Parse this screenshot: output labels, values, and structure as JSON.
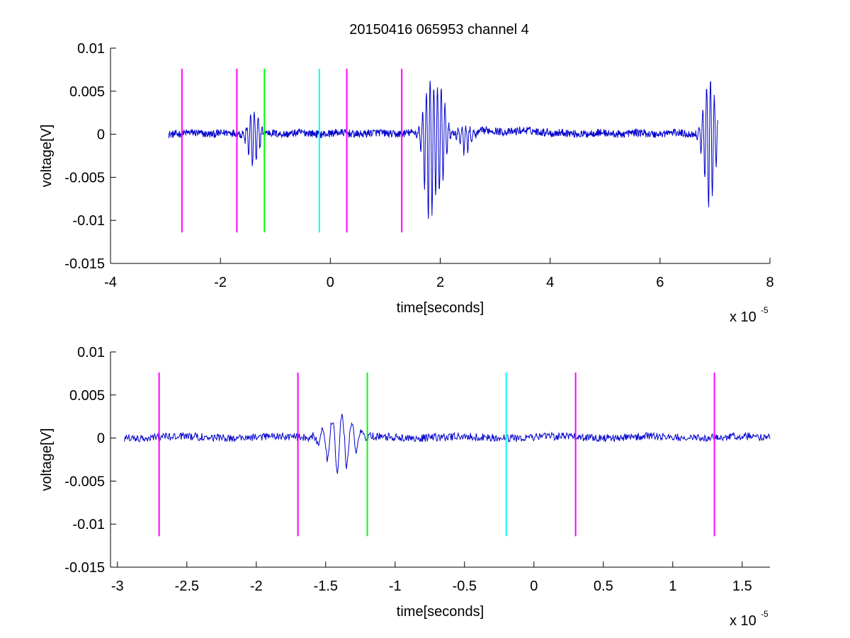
{
  "figure": {
    "title": "20150416 065953 channel 4"
  },
  "chart_data": [
    {
      "type": "line",
      "title": "20150416 065953 channel 4",
      "xlabel": "time[seconds]",
      "ylabel": "voltage[V]",
      "x_scale_label": "x 10",
      "x_scale_exponent": "-5",
      "xlim": [
        -4,
        8
      ],
      "ylim": [
        -0.015,
        0.01
      ],
      "x_ticks": [
        -4,
        -2,
        0,
        2,
        4,
        6,
        8
      ],
      "x_tick_labels": [
        "-4",
        "-2",
        "0",
        "2",
        "4",
        "6",
        "8"
      ],
      "y_ticks": [
        -0.015,
        -0.01,
        -0.005,
        0,
        0.005,
        0.01
      ],
      "y_tick_labels": [
        "-0.015",
        "-0.01",
        "-0.005",
        "0",
        "0.005",
        "0.01"
      ],
      "grid": false,
      "series_color": "#0000cc",
      "signal_range": [
        -2.95,
        7.05
      ],
      "bursts": [
        {
          "center": -1.4,
          "amp_pos": 0.0026,
          "amp_neg": -0.0042
        },
        {
          "center": 1.8,
          "amp_pos": 0.006,
          "amp_neg": -0.0103
        },
        {
          "center": 2.0,
          "amp_pos": 0.0053,
          "amp_neg": -0.0063
        },
        {
          "center": 2.45,
          "amp_pos": 0.001,
          "amp_neg": -0.0025
        },
        {
          "center": 6.9,
          "amp_pos": 0.0066,
          "amp_neg": -0.0093
        }
      ],
      "vlines": [
        {
          "x": -2.7,
          "color": "#ff00ff",
          "y0": -0.0114,
          "y1": 0.0076
        },
        {
          "x": -1.7,
          "color": "#ff00ff",
          "y0": -0.0114,
          "y1": 0.0076
        },
        {
          "x": -1.2,
          "color": "#00ff00",
          "y0": -0.0114,
          "y1": 0.0076
        },
        {
          "x": -0.2,
          "color": "#00ffff",
          "y0": -0.0114,
          "y1": 0.0076
        },
        {
          "x": 0.3,
          "color": "#ff00ff",
          "y0": -0.0114,
          "y1": 0.0076
        },
        {
          "x": 1.3,
          "color": "#ff00ff",
          "y0": -0.0114,
          "y1": 0.0076
        }
      ]
    },
    {
      "type": "line",
      "title": "",
      "xlabel": "time[seconds]",
      "ylabel": "voltage[V]",
      "x_scale_label": "x 10",
      "x_scale_exponent": "-5",
      "xlim": [
        -3.05,
        1.7
      ],
      "ylim": [
        -0.015,
        0.01
      ],
      "x_ticks": [
        -3,
        -2.5,
        -2,
        -1.5,
        -1,
        -0.5,
        0,
        0.5,
        1,
        1.5
      ],
      "x_tick_labels": [
        "-3",
        "-2.5",
        "-2",
        "-1.5",
        "-1",
        "-0.5",
        "0",
        "0.5",
        "1",
        "1.5"
      ],
      "y_ticks": [
        -0.015,
        -0.01,
        -0.005,
        0,
        0.005,
        0.01
      ],
      "y_tick_labels": [
        "-0.015",
        "-0.01",
        "-0.005",
        "0",
        "0.005",
        "0.01"
      ],
      "grid": false,
      "series_color": "#0000cc",
      "signal_range": [
        -2.95,
        1.7
      ],
      "bursts": [
        {
          "center": -1.4,
          "amp_pos": 0.0026,
          "amp_neg": -0.0042
        }
      ],
      "vlines": [
        {
          "x": -2.7,
          "color": "#ff00ff",
          "y0": -0.0114,
          "y1": 0.0076
        },
        {
          "x": -1.7,
          "color": "#ff00ff",
          "y0": -0.0114,
          "y1": 0.0076
        },
        {
          "x": -1.2,
          "color": "#00ff00",
          "y0": -0.0114,
          "y1": 0.0076
        },
        {
          "x": -0.2,
          "color": "#00ffff",
          "y0": -0.0114,
          "y1": 0.0076
        },
        {
          "x": 0.3,
          "color": "#ff00ff",
          "y0": -0.0114,
          "y1": 0.0076
        },
        {
          "x": 1.3,
          "color": "#ff00ff",
          "y0": -0.0114,
          "y1": 0.0076
        }
      ]
    }
  ]
}
